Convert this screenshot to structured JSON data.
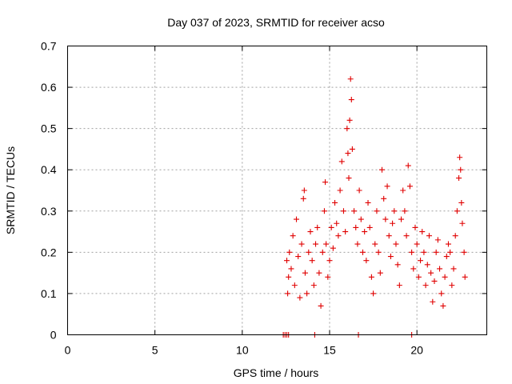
{
  "chart_data": {
    "type": "scatter",
    "title": "Day 037 of 2023, SRMTID for receiver acso",
    "xlabel": "GPS time / hours",
    "ylabel": "SRMTID / TECUs",
    "xlim": [
      0,
      24
    ],
    "ylim": [
      0,
      0.7
    ],
    "xticks": [
      0,
      5,
      10,
      15,
      20
    ],
    "xtick_labels": [
      "0",
      "5",
      "10",
      "15",
      "20"
    ],
    "yticks": [
      0,
      0.1,
      0.2,
      0.3,
      0.4,
      0.5,
      0.6,
      0.7
    ],
    "ytick_labels": [
      "0",
      "0.1",
      "0.2",
      "0.3",
      "0.4",
      "0.5",
      "0.6",
      "0.7"
    ],
    "grid": true,
    "marker": "plus",
    "color": "#e00000",
    "series": [
      {
        "name": "SRMTID",
        "points": [
          [
            12.35,
            0.0
          ],
          [
            12.45,
            0.0
          ],
          [
            12.55,
            0.0
          ],
          [
            12.65,
            0.0
          ],
          [
            14.15,
            0.0
          ],
          [
            16.65,
            0.0
          ],
          [
            19.7,
            0.0
          ],
          [
            12.55,
            0.18
          ],
          [
            12.6,
            0.1
          ],
          [
            12.65,
            0.14
          ],
          [
            12.7,
            0.2
          ],
          [
            12.8,
            0.16
          ],
          [
            12.9,
            0.24
          ],
          [
            13.0,
            0.12
          ],
          [
            13.1,
            0.28
          ],
          [
            13.2,
            0.19
          ],
          [
            13.3,
            0.09
          ],
          [
            13.4,
            0.22
          ],
          [
            13.5,
            0.33
          ],
          [
            13.55,
            0.35
          ],
          [
            13.6,
            0.15
          ],
          [
            13.7,
            0.1
          ],
          [
            13.8,
            0.2
          ],
          [
            13.9,
            0.25
          ],
          [
            14.0,
            0.18
          ],
          [
            14.1,
            0.12
          ],
          [
            14.2,
            0.22
          ],
          [
            14.3,
            0.26
          ],
          [
            14.4,
            0.15
          ],
          [
            14.5,
            0.07
          ],
          [
            14.6,
            0.2
          ],
          [
            14.7,
            0.3
          ],
          [
            14.75,
            0.37
          ],
          [
            14.8,
            0.22
          ],
          [
            14.9,
            0.14
          ],
          [
            15.0,
            0.18
          ],
          [
            15.1,
            0.26
          ],
          [
            15.2,
            0.21
          ],
          [
            15.3,
            0.32
          ],
          [
            15.4,
            0.27
          ],
          [
            15.5,
            0.24
          ],
          [
            15.6,
            0.35
          ],
          [
            15.7,
            0.42
          ],
          [
            15.8,
            0.3
          ],
          [
            15.9,
            0.25
          ],
          [
            16.0,
            0.5
          ],
          [
            16.05,
            0.44
          ],
          [
            16.1,
            0.38
          ],
          [
            16.15,
            0.52
          ],
          [
            16.2,
            0.62
          ],
          [
            16.25,
            0.57
          ],
          [
            16.3,
            0.45
          ],
          [
            16.4,
            0.3
          ],
          [
            16.5,
            0.26
          ],
          [
            16.6,
            0.22
          ],
          [
            16.7,
            0.35
          ],
          [
            16.8,
            0.28
          ],
          [
            16.9,
            0.2
          ],
          [
            17.0,
            0.25
          ],
          [
            17.1,
            0.18
          ],
          [
            17.2,
            0.32
          ],
          [
            17.3,
            0.26
          ],
          [
            17.4,
            0.14
          ],
          [
            17.5,
            0.1
          ],
          [
            17.6,
            0.22
          ],
          [
            17.7,
            0.3
          ],
          [
            17.8,
            0.2
          ],
          [
            17.9,
            0.15
          ],
          [
            18.0,
            0.4
          ],
          [
            18.1,
            0.33
          ],
          [
            18.2,
            0.28
          ],
          [
            18.3,
            0.36
          ],
          [
            18.4,
            0.24
          ],
          [
            18.5,
            0.19
          ],
          [
            18.6,
            0.27
          ],
          [
            18.7,
            0.3
          ],
          [
            18.8,
            0.22
          ],
          [
            18.9,
            0.17
          ],
          [
            19.0,
            0.12
          ],
          [
            19.1,
            0.28
          ],
          [
            19.2,
            0.35
          ],
          [
            19.3,
            0.3
          ],
          [
            19.4,
            0.24
          ],
          [
            19.5,
            0.41
          ],
          [
            19.6,
            0.36
          ],
          [
            19.7,
            0.2
          ],
          [
            19.8,
            0.16
          ],
          [
            19.9,
            0.26
          ],
          [
            20.0,
            0.22
          ],
          [
            20.1,
            0.14
          ],
          [
            20.2,
            0.18
          ],
          [
            20.3,
            0.25
          ],
          [
            20.4,
            0.2
          ],
          [
            20.5,
            0.12
          ],
          [
            20.6,
            0.17
          ],
          [
            20.7,
            0.24
          ],
          [
            20.8,
            0.15
          ],
          [
            20.9,
            0.08
          ],
          [
            21.0,
            0.13
          ],
          [
            21.1,
            0.2
          ],
          [
            21.2,
            0.23
          ],
          [
            21.3,
            0.16
          ],
          [
            21.4,
            0.1
          ],
          [
            21.5,
            0.07
          ],
          [
            21.6,
            0.14
          ],
          [
            21.7,
            0.19
          ],
          [
            21.8,
            0.22
          ],
          [
            21.9,
            0.2
          ],
          [
            22.0,
            0.12
          ],
          [
            22.1,
            0.16
          ],
          [
            22.2,
            0.24
          ],
          [
            22.3,
            0.3
          ],
          [
            22.4,
            0.38
          ],
          [
            22.45,
            0.43
          ],
          [
            22.5,
            0.4
          ],
          [
            22.55,
            0.32
          ],
          [
            22.6,
            0.27
          ],
          [
            22.7,
            0.2
          ],
          [
            22.75,
            0.14
          ]
        ]
      }
    ]
  }
}
